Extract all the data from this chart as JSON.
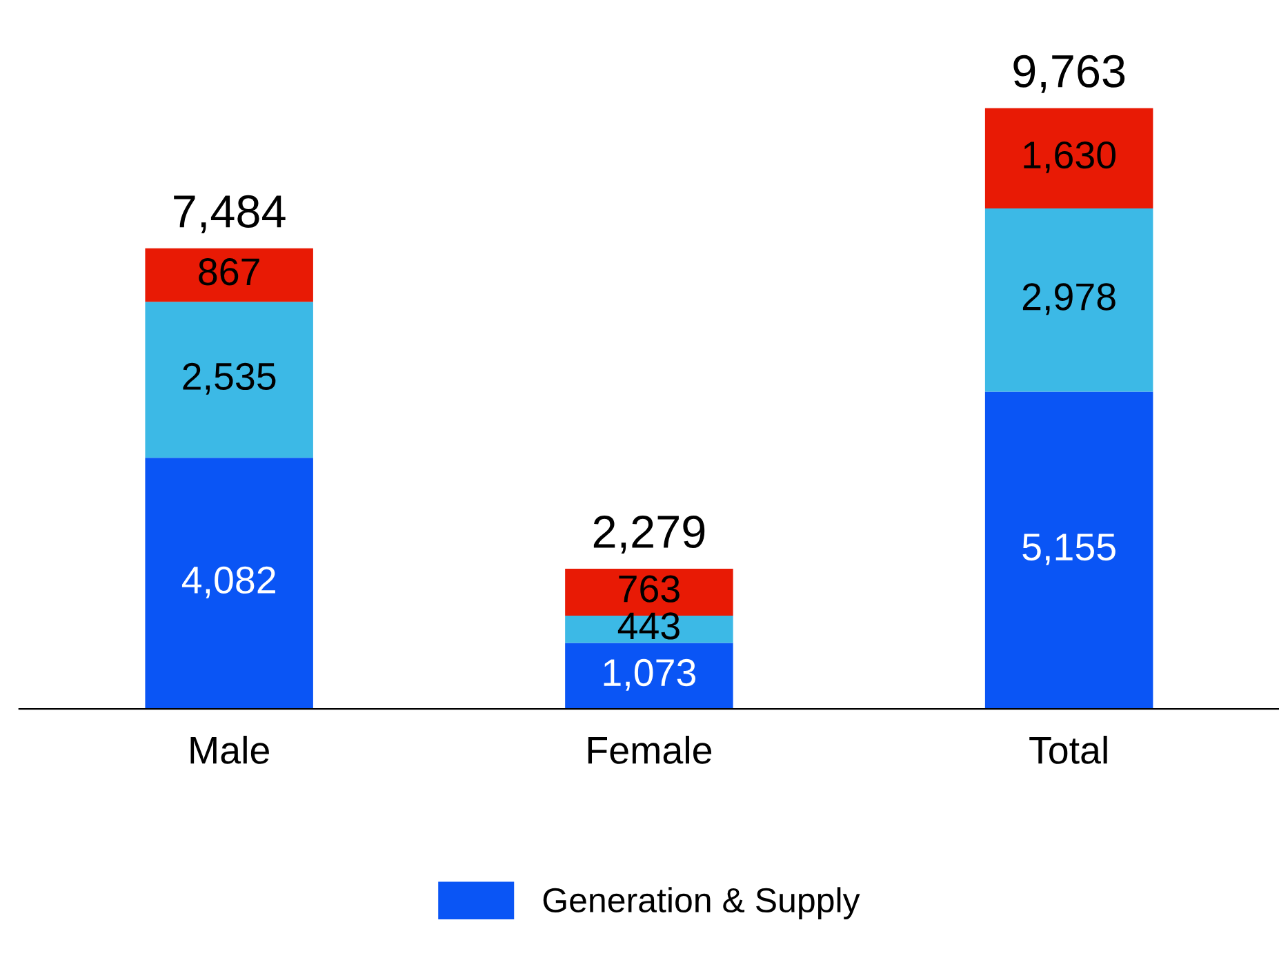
{
  "chart_data": {
    "type": "bar",
    "stacked": true,
    "categories": [
      "Male",
      "Female",
      "Total"
    ],
    "series": [
      {
        "name": "Generation & Supply",
        "color": "#0a55f5",
        "values": [
          4082,
          1073,
          5155
        ],
        "value_labels": [
          "4,082",
          "1,073",
          "5,155"
        ]
      },
      {
        "color": "#3cb9e6",
        "values": [
          2535,
          443,
          2978
        ],
        "value_labels": [
          "2,535",
          "443",
          "2,978"
        ]
      },
      {
        "color": "#e81a05",
        "values": [
          867,
          763,
          1630
        ],
        "value_labels": [
          "867",
          "763",
          "1,630"
        ]
      }
    ],
    "totals": [
      "7,484",
      "2,279",
      "9,763"
    ],
    "legend": "bottom",
    "grid": false
  }
}
